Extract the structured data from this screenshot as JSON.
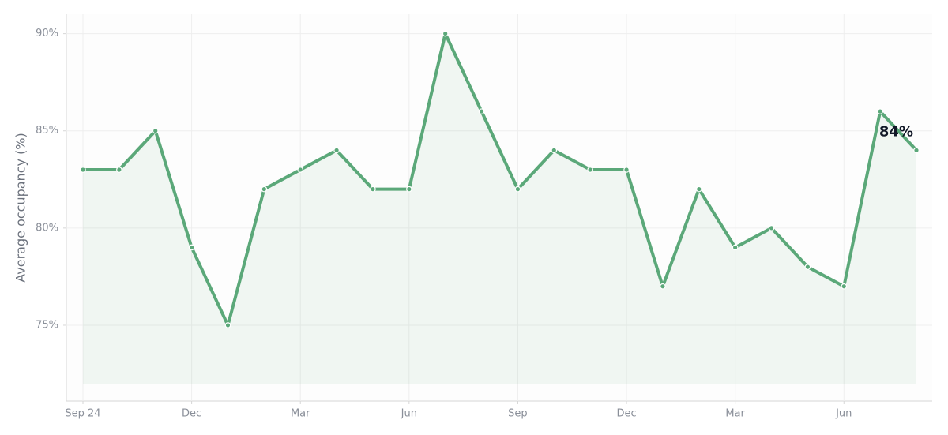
{
  "chart_data": {
    "type": "line",
    "y_label": "Average occupancy (%)",
    "categories": [
      "Sep 24",
      null,
      null,
      "Dec",
      null,
      null,
      "Mar",
      null,
      null,
      "Jun",
      null,
      null,
      "Sep",
      null,
      null,
      "Dec",
      null,
      null,
      "Mar",
      null,
      null,
      "Jun",
      null,
      null
    ],
    "series": [
      {
        "name": "Average occupancy",
        "color": "#5ba879",
        "values": [
          83,
          83,
          85,
          79,
          75,
          82,
          83,
          84,
          82,
          82,
          90,
          86,
          82,
          84,
          83,
          83,
          77,
          82,
          79,
          80,
          78,
          77,
          86,
          84
        ],
        "value_labels": [
          null,
          null,
          null,
          null,
          null,
          null,
          null,
          null,
          null,
          null,
          null,
          null,
          null,
          null,
          null,
          null,
          null,
          null,
          null,
          null,
          null,
          null,
          null,
          "84%"
        ]
      }
    ],
    "ylim": [
      71.1,
      91
    ],
    "yticks": [
      {
        "value": 75,
        "label": "75%"
      },
      {
        "value": 80,
        "label": "80%"
      },
      {
        "value": 85,
        "label": "85%"
      },
      {
        "value": 90,
        "label": "90%"
      }
    ],
    "grid": true
  }
}
